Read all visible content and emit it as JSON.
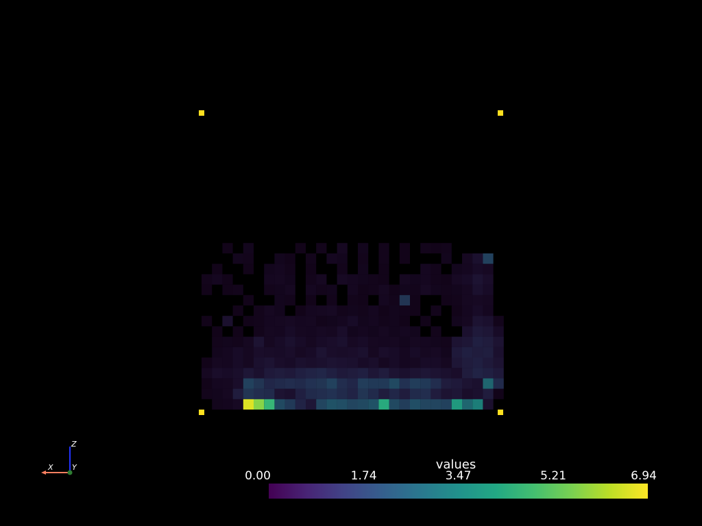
{
  "chart_data": {
    "type": "heatmap",
    "colormap": "viridis",
    "background": "#000000",
    "grid": {
      "rows": 22,
      "cols": 29
    },
    "cells": [
      [
        0,
        1,
        0.38
      ],
      [
        0,
        2,
        0.42
      ],
      [
        0,
        3,
        0.55
      ],
      [
        0,
        4,
        6.6
      ],
      [
        0,
        5,
        5.7
      ],
      [
        0,
        6,
        4.6
      ],
      [
        0,
        7,
        2.4
      ],
      [
        0,
        8,
        2.0
      ],
      [
        0,
        9,
        1.4
      ],
      [
        0,
        10,
        1.0
      ],
      [
        0,
        11,
        2.3
      ],
      [
        0,
        12,
        2.6
      ],
      [
        0,
        13,
        2.5
      ],
      [
        0,
        14,
        2.3
      ],
      [
        0,
        15,
        2.4
      ],
      [
        0,
        16,
        2.6
      ],
      [
        0,
        17,
        4.3
      ],
      [
        0,
        18,
        2.4
      ],
      [
        0,
        19,
        2.1
      ],
      [
        0,
        20,
        2.5
      ],
      [
        0,
        21,
        2.3
      ],
      [
        0,
        22,
        2.3
      ],
      [
        0,
        23,
        2.2
      ],
      [
        0,
        24,
        4.0
      ],
      [
        0,
        25,
        3.0
      ],
      [
        0,
        26,
        3.5
      ],
      [
        0,
        27,
        0.8
      ],
      [
        1,
        0,
        0.35
      ],
      [
        1,
        1,
        0.4
      ],
      [
        1,
        2,
        0.5
      ],
      [
        1,
        3,
        1.2
      ],
      [
        1,
        4,
        1.9
      ],
      [
        1,
        5,
        1.7
      ],
      [
        1,
        6,
        1.6
      ],
      [
        1,
        7,
        0.9
      ],
      [
        1,
        8,
        0.8
      ],
      [
        1,
        9,
        1.3
      ],
      [
        1,
        10,
        1.6
      ],
      [
        1,
        11,
        1.7
      ],
      [
        1,
        12,
        1.8
      ],
      [
        1,
        13,
        1.6
      ],
      [
        1,
        14,
        1.4
      ],
      [
        1,
        15,
        1.9
      ],
      [
        1,
        16,
        1.6
      ],
      [
        1,
        17,
        1.2
      ],
      [
        1,
        18,
        1.5
      ],
      [
        1,
        19,
        1.2
      ],
      [
        1,
        20,
        1.6
      ],
      [
        1,
        21,
        1.7
      ],
      [
        1,
        22,
        1.2
      ],
      [
        1,
        23,
        0.9
      ],
      [
        1,
        24,
        1.0
      ],
      [
        1,
        25,
        0.7
      ],
      [
        1,
        26,
        0.8
      ],
      [
        1,
        27,
        1.2
      ],
      [
        1,
        28,
        0.3
      ],
      [
        2,
        0,
        0.3
      ],
      [
        2,
        1,
        0.45
      ],
      [
        2,
        2,
        0.5
      ],
      [
        2,
        3,
        0.7
      ],
      [
        2,
        4,
        2.2
      ],
      [
        2,
        5,
        1.9
      ],
      [
        2,
        6,
        1.5
      ],
      [
        2,
        7,
        1.6
      ],
      [
        2,
        8,
        1.7
      ],
      [
        2,
        9,
        1.6
      ],
      [
        2,
        10,
        1.8
      ],
      [
        2,
        11,
        1.9
      ],
      [
        2,
        12,
        2.2
      ],
      [
        2,
        13,
        1.7
      ],
      [
        2,
        14,
        1.5
      ],
      [
        2,
        15,
        2.1
      ],
      [
        2,
        16,
        2.0
      ],
      [
        2,
        17,
        2.0
      ],
      [
        2,
        18,
        2.4
      ],
      [
        2,
        19,
        1.8
      ],
      [
        2,
        20,
        2.1
      ],
      [
        2,
        21,
        2.0
      ],
      [
        2,
        22,
        1.7
      ],
      [
        2,
        23,
        1.2
      ],
      [
        2,
        24,
        1.1
      ],
      [
        2,
        25,
        0.9
      ],
      [
        2,
        26,
        0.8
      ],
      [
        2,
        27,
        3.0
      ],
      [
        2,
        28,
        1.6
      ],
      [
        3,
        0,
        0.5
      ],
      [
        3,
        1,
        0.7
      ],
      [
        3,
        2,
        0.6
      ],
      [
        3,
        3,
        0.75
      ],
      [
        3,
        4,
        1.0
      ],
      [
        3,
        5,
        0.8
      ],
      [
        3,
        6,
        1.1
      ],
      [
        3,
        7,
        1.2
      ],
      [
        3,
        8,
        1.1
      ],
      [
        3,
        9,
        1.3
      ],
      [
        3,
        10,
        1.4
      ],
      [
        3,
        11,
        1.5
      ],
      [
        3,
        12,
        1.3
      ],
      [
        3,
        13,
        1.1
      ],
      [
        3,
        14,
        1.2
      ],
      [
        3,
        15,
        1.3
      ],
      [
        3,
        16,
        1.0
      ],
      [
        3,
        17,
        1.2
      ],
      [
        3,
        18,
        0.9
      ],
      [
        3,
        19,
        0.8
      ],
      [
        3,
        20,
        0.9
      ],
      [
        3,
        21,
        1.0
      ],
      [
        3,
        22,
        0.9
      ],
      [
        3,
        23,
        0.8
      ],
      [
        3,
        24,
        0.7
      ],
      [
        3,
        25,
        1.2
      ],
      [
        3,
        26,
        1.4
      ],
      [
        3,
        27,
        1.3
      ],
      [
        3,
        28,
        1.1
      ],
      [
        4,
        0,
        0.3
      ],
      [
        4,
        1,
        0.5
      ],
      [
        4,
        2,
        0.45
      ],
      [
        4,
        3,
        0.6
      ],
      [
        4,
        4,
        0.5
      ],
      [
        4,
        5,
        0.8
      ],
      [
        4,
        6,
        0.9
      ],
      [
        4,
        7,
        0.7
      ],
      [
        4,
        8,
        0.6
      ],
      [
        4,
        9,
        0.8
      ],
      [
        4,
        10,
        0.75
      ],
      [
        4,
        11,
        0.8
      ],
      [
        4,
        12,
        0.9
      ],
      [
        4,
        13,
        0.85
      ],
      [
        4,
        14,
        0.8
      ],
      [
        4,
        15,
        0.6
      ],
      [
        4,
        16,
        0.75
      ],
      [
        4,
        17,
        0.5
      ],
      [
        4,
        18,
        0.6
      ],
      [
        4,
        19,
        0.45
      ],
      [
        4,
        20,
        0.5
      ],
      [
        4,
        21,
        0.6
      ],
      [
        4,
        22,
        0.6
      ],
      [
        4,
        23,
        0.5
      ],
      [
        4,
        24,
        1.0
      ],
      [
        4,
        25,
        1.2
      ],
      [
        4,
        26,
        1.3
      ],
      [
        4,
        27,
        1.1
      ],
      [
        4,
        28,
        0.9
      ],
      [
        5,
        1,
        0.4
      ],
      [
        5,
        2,
        0.45
      ],
      [
        5,
        3,
        0.6
      ],
      [
        5,
        4,
        0.5
      ],
      [
        5,
        5,
        0.7
      ],
      [
        5,
        6,
        0.65
      ],
      [
        5,
        7,
        0.6
      ],
      [
        5,
        8,
        0.7
      ],
      [
        5,
        9,
        0.55
      ],
      [
        5,
        10,
        0.6
      ],
      [
        5,
        11,
        0.9
      ],
      [
        5,
        12,
        0.7
      ],
      [
        5,
        13,
        0.65
      ],
      [
        5,
        14,
        0.7
      ],
      [
        5,
        15,
        0.8
      ],
      [
        5,
        16,
        0.5
      ],
      [
        5,
        17,
        0.7
      ],
      [
        5,
        18,
        0.6
      ],
      [
        5,
        19,
        0.45
      ],
      [
        5,
        20,
        0.6
      ],
      [
        5,
        21,
        0.5
      ],
      [
        5,
        22,
        0.55
      ],
      [
        5,
        23,
        0.4
      ],
      [
        5,
        24,
        1.1
      ],
      [
        5,
        25,
        1.3
      ],
      [
        5,
        26,
        1.2
      ],
      [
        5,
        27,
        1.25
      ],
      [
        5,
        28,
        0.8
      ],
      [
        6,
        1,
        0.35
      ],
      [
        6,
        2,
        0.4
      ],
      [
        6,
        3,
        0.35
      ],
      [
        6,
        4,
        0.5
      ],
      [
        6,
        5,
        0.9
      ],
      [
        6,
        6,
        0.5
      ],
      [
        6,
        7,
        0.6
      ],
      [
        6,
        8,
        0.8
      ],
      [
        6,
        9,
        0.6
      ],
      [
        6,
        10,
        0.5
      ],
      [
        6,
        11,
        0.6
      ],
      [
        6,
        12,
        0.7
      ],
      [
        6,
        13,
        0.8
      ],
      [
        6,
        14,
        0.55
      ],
      [
        6,
        15,
        0.6
      ],
      [
        6,
        16,
        0.5
      ],
      [
        6,
        17,
        0.45
      ],
      [
        6,
        18,
        0.5
      ],
      [
        6,
        19,
        0.4
      ],
      [
        6,
        20,
        0.5
      ],
      [
        6,
        21,
        0.45
      ],
      [
        6,
        22,
        0.4
      ],
      [
        6,
        23,
        0.35
      ],
      [
        6,
        24,
        0.9
      ],
      [
        6,
        25,
        1.0
      ],
      [
        6,
        26,
        1.3
      ],
      [
        6,
        27,
        1.2
      ],
      [
        6,
        28,
        0.9
      ],
      [
        7,
        1,
        0.3
      ],
      [
        7,
        3,
        0.3
      ],
      [
        7,
        5,
        0.35
      ],
      [
        7,
        6,
        0.5
      ],
      [
        7,
        7,
        0.45
      ],
      [
        7,
        8,
        0.6
      ],
      [
        7,
        9,
        0.5
      ],
      [
        7,
        10,
        0.45
      ],
      [
        7,
        11,
        0.55
      ],
      [
        7,
        12,
        0.5
      ],
      [
        7,
        13,
        0.7
      ],
      [
        7,
        14,
        0.4
      ],
      [
        7,
        15,
        0.45
      ],
      [
        7,
        16,
        0.4
      ],
      [
        7,
        17,
        0.5
      ],
      [
        7,
        18,
        0.4
      ],
      [
        7,
        19,
        0.45
      ],
      [
        7,
        20,
        0.4
      ],
      [
        7,
        22,
        0.35
      ],
      [
        7,
        25,
        0.8
      ],
      [
        7,
        26,
        1.1
      ],
      [
        7,
        27,
        1.0
      ],
      [
        7,
        28,
        0.6
      ],
      [
        8,
        0,
        0.3
      ],
      [
        8,
        2,
        0.8
      ],
      [
        8,
        4,
        0.3
      ],
      [
        8,
        5,
        0.35
      ],
      [
        8,
        6,
        0.45
      ],
      [
        8,
        7,
        0.5
      ],
      [
        8,
        8,
        0.55
      ],
      [
        8,
        9,
        0.45
      ],
      [
        8,
        10,
        0.5
      ],
      [
        8,
        11,
        0.35
      ],
      [
        8,
        12,
        0.4
      ],
      [
        8,
        13,
        0.45
      ],
      [
        8,
        14,
        0.6
      ],
      [
        8,
        15,
        0.4
      ],
      [
        8,
        16,
        0.45
      ],
      [
        8,
        17,
        0.35
      ],
      [
        8,
        18,
        0.4
      ],
      [
        8,
        19,
        0.3
      ],
      [
        8,
        21,
        0.3
      ],
      [
        8,
        24,
        0.4
      ],
      [
        8,
        25,
        0.5
      ],
      [
        8,
        26,
        0.9
      ],
      [
        8,
        27,
        0.8
      ],
      [
        8,
        28,
        0.35
      ],
      [
        9,
        3,
        0.3
      ],
      [
        9,
        5,
        0.35
      ],
      [
        9,
        6,
        0.5
      ],
      [
        9,
        7,
        0.4
      ],
      [
        9,
        9,
        0.3
      ],
      [
        9,
        10,
        0.45
      ],
      [
        9,
        11,
        0.5
      ],
      [
        9,
        12,
        0.55
      ],
      [
        9,
        13,
        0.35
      ],
      [
        9,
        14,
        0.4
      ],
      [
        9,
        15,
        0.35
      ],
      [
        9,
        16,
        0.45
      ],
      [
        9,
        17,
        0.3
      ],
      [
        9,
        18,
        0.4
      ],
      [
        9,
        19,
        0.35
      ],
      [
        9,
        20,
        0.3
      ],
      [
        9,
        22,
        0.35
      ],
      [
        9,
        24,
        0.3
      ],
      [
        9,
        25,
        0.45
      ],
      [
        9,
        26,
        0.6
      ],
      [
        9,
        27,
        0.45
      ],
      [
        10,
        4,
        0.3
      ],
      [
        10,
        7,
        0.4
      ],
      [
        10,
        8,
        0.35
      ],
      [
        10,
        10,
        0.3
      ],
      [
        10,
        12,
        0.35
      ],
      [
        10,
        14,
        0.35
      ],
      [
        10,
        15,
        0.3
      ],
      [
        10,
        17,
        0.45
      ],
      [
        10,
        18,
        0.35
      ],
      [
        10,
        19,
        1.9
      ],
      [
        10,
        20,
        0.3
      ],
      [
        10,
        23,
        0.3
      ],
      [
        10,
        24,
        0.35
      ],
      [
        10,
        25,
        0.5
      ],
      [
        10,
        26,
        0.55
      ],
      [
        10,
        27,
        0.5
      ],
      [
        11,
        0,
        0.3
      ],
      [
        11,
        2,
        0.3
      ],
      [
        11,
        3,
        0.35
      ],
      [
        11,
        6,
        0.35
      ],
      [
        11,
        7,
        0.4
      ],
      [
        11,
        8,
        0.5
      ],
      [
        11,
        10,
        0.45
      ],
      [
        11,
        11,
        0.35
      ],
      [
        11,
        12,
        0.4
      ],
      [
        11,
        14,
        0.45
      ],
      [
        11,
        15,
        0.3
      ],
      [
        11,
        16,
        0.35
      ],
      [
        11,
        17,
        0.5
      ],
      [
        11,
        18,
        0.3
      ],
      [
        11,
        19,
        0.4
      ],
      [
        11,
        20,
        0.35
      ],
      [
        11,
        21,
        0.55
      ],
      [
        11,
        22,
        0.4
      ],
      [
        11,
        23,
        0.35
      ],
      [
        11,
        24,
        0.4
      ],
      [
        11,
        25,
        0.5
      ],
      [
        11,
        26,
        0.8
      ],
      [
        11,
        27,
        0.6
      ],
      [
        12,
        0,
        0.35
      ],
      [
        12,
        1,
        0.45
      ],
      [
        12,
        2,
        0.3
      ],
      [
        12,
        6,
        0.45
      ],
      [
        12,
        7,
        0.5
      ],
      [
        12,
        8,
        0.4
      ],
      [
        12,
        10,
        0.35
      ],
      [
        12,
        11,
        0.5
      ],
      [
        12,
        13,
        0.55
      ],
      [
        12,
        14,
        0.45
      ],
      [
        12,
        15,
        0.4
      ],
      [
        12,
        16,
        0.35
      ],
      [
        12,
        17,
        0.3
      ],
      [
        12,
        19,
        0.5
      ],
      [
        12,
        20,
        0.4
      ],
      [
        12,
        21,
        0.45
      ],
      [
        12,
        22,
        0.35
      ],
      [
        12,
        23,
        0.3
      ],
      [
        12,
        24,
        0.55
      ],
      [
        12,
        25,
        0.6
      ],
      [
        12,
        26,
        0.9
      ],
      [
        12,
        27,
        0.7
      ],
      [
        13,
        1,
        0.3
      ],
      [
        13,
        4,
        0.3
      ],
      [
        13,
        6,
        0.4
      ],
      [
        13,
        7,
        0.45
      ],
      [
        13,
        8,
        0.35
      ],
      [
        13,
        10,
        0.3
      ],
      [
        13,
        13,
        0.35
      ],
      [
        13,
        15,
        0.4
      ],
      [
        13,
        17,
        0.3
      ],
      [
        13,
        21,
        0.45
      ],
      [
        13,
        22,
        0.35
      ],
      [
        13,
        24,
        0.4
      ],
      [
        13,
        25,
        0.45
      ],
      [
        13,
        26,
        0.6
      ],
      [
        13,
        27,
        0.55
      ],
      [
        14,
        3,
        0.4
      ],
      [
        14,
        4,
        0.35
      ],
      [
        14,
        7,
        0.4
      ],
      [
        14,
        8,
        0.3
      ],
      [
        14,
        10,
        0.35
      ],
      [
        14,
        12,
        0.45
      ],
      [
        14,
        13,
        0.4
      ],
      [
        14,
        15,
        0.35
      ],
      [
        14,
        17,
        0.35
      ],
      [
        14,
        19,
        0.3
      ],
      [
        14,
        23,
        0.4
      ],
      [
        14,
        25,
        0.5
      ],
      [
        14,
        26,
        0.8
      ],
      [
        14,
        27,
        2.2
      ],
      [
        15,
        2,
        0.3
      ],
      [
        15,
        4,
        0.4
      ],
      [
        15,
        9,
        0.3
      ],
      [
        15,
        11,
        0.35
      ],
      [
        15,
        13,
        0.5
      ],
      [
        15,
        15,
        0.4
      ],
      [
        15,
        17,
        0.35
      ],
      [
        15,
        19,
        0.3
      ],
      [
        15,
        21,
        0.35
      ],
      [
        15,
        22,
        0.3
      ],
      [
        15,
        23,
        0.35
      ]
    ],
    "cell_values_note": "",
    "vmin": 0.0,
    "vmax": 6.94,
    "colorbar": {
      "title": "values",
      "ticks": [
        "0.00",
        "1.74",
        "3.47",
        "5.21",
        "6.94"
      ],
      "tick_values": [
        0.0,
        1.74,
        3.47,
        5.21,
        6.94
      ]
    },
    "bounding_markers": {
      "color": "#ffe020",
      "count": 4
    },
    "orientation_axes": {
      "labels": {
        "x": "X",
        "y": "Y",
        "z": "Z"
      },
      "colors": {
        "x": "#ff8060",
        "y": "#2e7d32",
        "z": "#2233ff"
      }
    }
  }
}
